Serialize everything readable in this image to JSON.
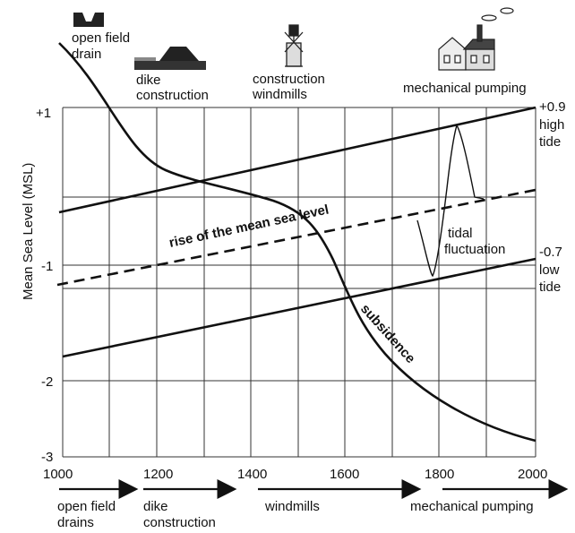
{
  "y_axis_label": "Mean Sea Level (MSL)",
  "y_ticks": [
    "+1",
    "-1",
    "-2",
    "-3"
  ],
  "x_ticks": [
    "1000",
    "1200",
    "1400",
    "1600",
    "1800",
    "2000"
  ],
  "top_labels": {
    "open_field": [
      "open field",
      "drain"
    ],
    "dike": [
      "dike",
      "construction"
    ],
    "windmills": [
      "construction",
      "windmills"
    ],
    "pumping": "mechanical pumping"
  },
  "right_labels": {
    "high_value": "+0.9",
    "high_1": "high",
    "high_2": "tide",
    "low_value": "-0.7",
    "low_1": "low",
    "low_2": "tide"
  },
  "curve_labels": {
    "rise": "rise of the mean  sea level",
    "tidal_1": "tidal",
    "tidal_2": "fluctuation",
    "subsidence": "subsidence"
  },
  "bottom_labels": {
    "open_field": [
      "open field",
      "drains"
    ],
    "dike": [
      "dike",
      "construction"
    ],
    "windmills": "windmills",
    "pumping": "mechanical pumping"
  },
  "icons": {
    "drain": "open-field-drain-icon",
    "dike": "dike-icon",
    "windmill": "windmill-icon",
    "pumping": "pumping-station-icon"
  },
  "colors": {
    "ink": "#111111",
    "background": "#ffffff"
  }
}
